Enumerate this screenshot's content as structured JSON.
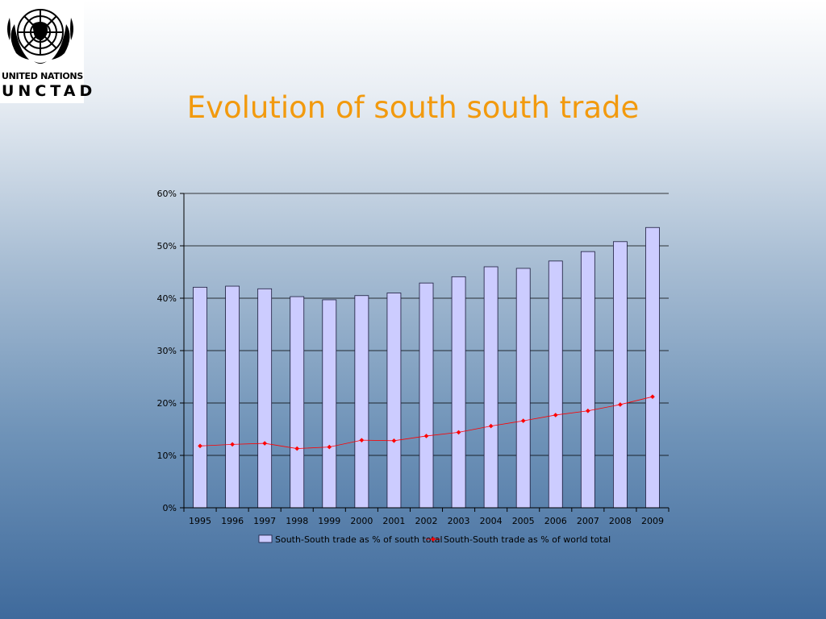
{
  "logo": {
    "line1": "UNITED NATIONS",
    "line2": "UNCTAD"
  },
  "slide": {
    "title": "Evolution of south south trade"
  },
  "colors": {
    "title": "#f29a0e",
    "bar_fill": "#ccccff",
    "bar_stroke": "#1a1a3a",
    "line": "#ff0000",
    "gridline": "#000000"
  },
  "chart_data": {
    "type": "bar",
    "categories": [
      "1995",
      "1996",
      "1997",
      "1998",
      "1999",
      "2000",
      "2001",
      "2002",
      "2003",
      "2004",
      "2005",
      "2006",
      "2007",
      "2008",
      "2009"
    ],
    "ylim": [
      0,
      60
    ],
    "yticks": [
      0,
      10,
      20,
      30,
      40,
      50,
      60
    ],
    "ytick_labels": [
      "0%",
      "10%",
      "20%",
      "30%",
      "40%",
      "50%",
      "60%"
    ],
    "grid": true,
    "legend_position": "bottom",
    "series": [
      {
        "name": "South-South trade as % of south total",
        "type": "bar",
        "values": [
          42.1,
          42.3,
          41.8,
          40.3,
          39.7,
          40.5,
          41.0,
          42.9,
          44.1,
          46.0,
          45.7,
          47.1,
          48.9,
          50.8,
          53.5
        ]
      },
      {
        "name": "South-South trade as % of world total",
        "type": "line",
        "values": [
          11.8,
          12.1,
          12.3,
          11.3,
          11.6,
          12.9,
          12.8,
          13.7,
          14.4,
          15.6,
          16.6,
          17.7,
          18.5,
          19.7,
          21.2
        ]
      }
    ]
  }
}
